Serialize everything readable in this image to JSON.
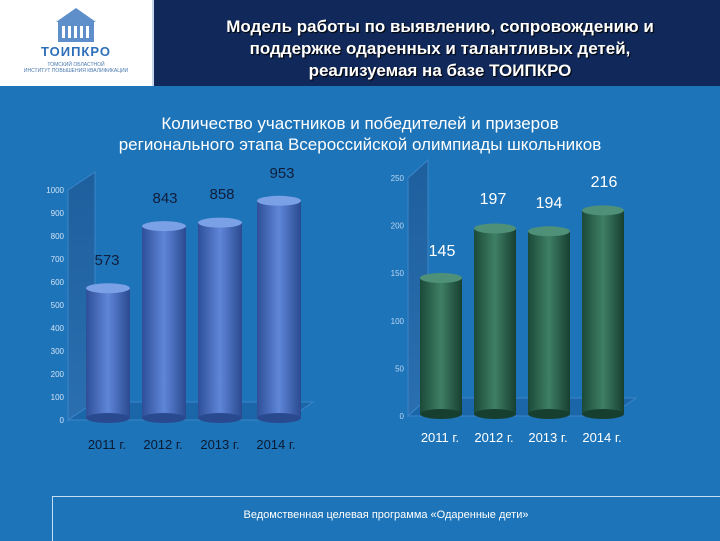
{
  "header": {
    "logo_text": "ТОИПКРО",
    "logo_sub1": "ТОМСКИЙ ОБЛАСТНОЙ",
    "logo_sub2": "ИНСТИТУТ ПОВЫШЕНИЯ КВАЛИФИКАЦИИ",
    "title_line1": "Модель работы по выявлению, сопровождению и",
    "title_line2": "поддержке одаренных и талантливых детей,",
    "title_line3": "реализуемая на базе ТОИПКРО"
  },
  "subtitle_line1": "Количество участников и победителей и призеров",
  "subtitle_line2": "регионального этапа Всероссийской олимпиады школьников",
  "footer": "Ведомственная целевая программа «Одаренные дети»",
  "colors": {
    "background": "#1e74b8",
    "header": "#10295a",
    "bar_left": "#4a72c8",
    "bar_right": "#2e6b53"
  },
  "chart_data": [
    {
      "type": "bar",
      "categories": [
        "2011 г.",
        "2012 г.",
        "2013 г.",
        "2014 г."
      ],
      "values": [
        573,
        843,
        858,
        953
      ],
      "ylim": [
        0,
        1000
      ],
      "yticks": [
        0,
        100,
        200,
        300,
        400,
        500,
        600,
        700,
        800,
        900,
        1000
      ],
      "data_labels": [
        "573",
        "843",
        "858",
        "953"
      ],
      "grid": false
    },
    {
      "type": "bar",
      "categories": [
        "2011 г.",
        "2012 г.",
        "2013 г.",
        "2014 г."
      ],
      "values": [
        145,
        197,
        194,
        216
      ],
      "ylim": [
        0,
        250
      ],
      "yticks": [
        0,
        50,
        100,
        150,
        200,
        250
      ],
      "data_labels": [
        "145",
        "197",
        "194",
        "216"
      ],
      "grid": false
    }
  ]
}
